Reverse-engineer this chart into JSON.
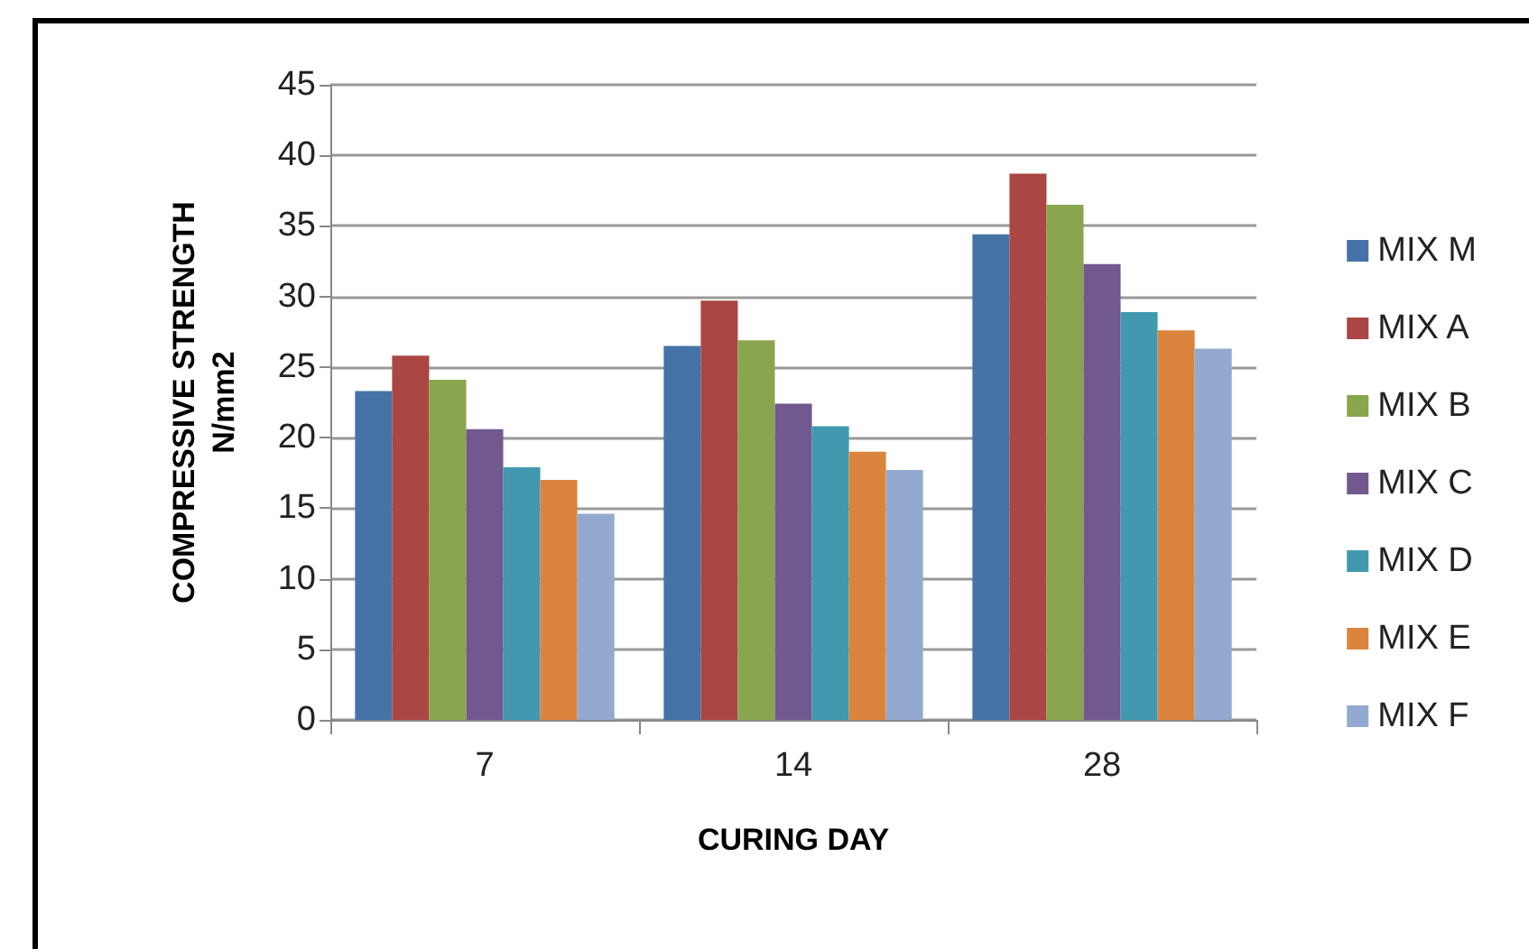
{
  "chart_data": {
    "type": "bar",
    "xlabel": "CURING DAY",
    "ylabel": "COMPRESSIVE STRENGTH\nN/mm2",
    "categories": [
      "7",
      "14",
      "28"
    ],
    "series": [
      {
        "name": "MIX M",
        "color": "#4572a7",
        "values": [
          23.3,
          26.5,
          34.4
        ]
      },
      {
        "name": "MIX A",
        "color": "#aa4643",
        "values": [
          25.8,
          29.7,
          38.7
        ]
      },
      {
        "name": "MIX B",
        "color": "#89a54e",
        "values": [
          24.1,
          26.9,
          36.5
        ]
      },
      {
        "name": "MIX C",
        "color": "#71588f",
        "values": [
          20.6,
          22.4,
          32.3
        ]
      },
      {
        "name": "MIX D",
        "color": "#4198af",
        "values": [
          17.9,
          20.8,
          28.9
        ]
      },
      {
        "name": "MIX E",
        "color": "#db843d",
        "values": [
          17.0,
          19.0,
          27.6
        ]
      },
      {
        "name": "MIX F",
        "color": "#93a9cf",
        "values": [
          14.6,
          17.7,
          26.3
        ]
      }
    ],
    "ylim": [
      0,
      45
    ],
    "yticks": [
      0,
      5,
      10,
      15,
      20,
      25,
      30,
      35,
      40,
      45
    ],
    "grid": "y",
    "legend": "right"
  }
}
